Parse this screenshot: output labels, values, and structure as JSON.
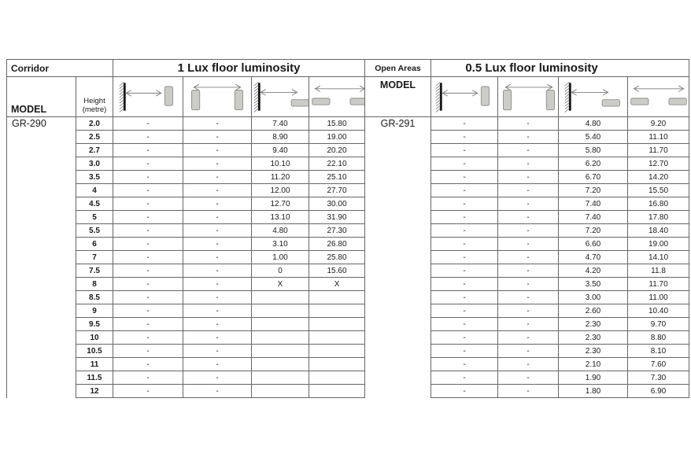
{
  "colors": {
    "line": "#666666",
    "text": "#1a1a1a",
    "luminaire_fill": "#cbcbc7",
    "luminaire_stroke": "#8f8f8b",
    "wall": "#111111",
    "arrow": "#7d7d7d"
  },
  "left_panel": {
    "area_label": "Corridor",
    "title": "1 Lux floor luminosity",
    "model_label": "MODEL",
    "height_label": {
      "line1": "Height",
      "line2": "(metre)"
    },
    "model": "GR-290",
    "column_icons": [
      "wall-to-wall-luminaire-spacing-icon",
      "wall-luminaire-to-wall-luminaire-spacing-icon",
      "wall-to-ceiling-luminaire-spacing-icon",
      "ceiling-luminaire-to-ceiling-luminaire-spacing-icon"
    ],
    "rows": [
      {
        "height": "2.0",
        "values": [
          "-",
          "-",
          "7.40",
          "15.80"
        ]
      },
      {
        "height": "2.5",
        "values": [
          "-",
          "-",
          "8.90",
          "19.00"
        ]
      },
      {
        "height": "2.7",
        "values": [
          "-",
          "-",
          "9.40",
          "20.20"
        ]
      },
      {
        "height": "3.0",
        "values": [
          "-",
          "-",
          "10.10",
          "22.10"
        ]
      },
      {
        "height": "3.5",
        "values": [
          "-",
          "-",
          "11.20",
          "25.10"
        ]
      },
      {
        "height": "4",
        "values": [
          "-",
          "-",
          "12.00",
          "27.70"
        ]
      },
      {
        "height": "4.5",
        "values": [
          "-",
          "-",
          "12.70",
          "30.00"
        ]
      },
      {
        "height": "5",
        "values": [
          "-",
          "-",
          "13.10",
          "31.90"
        ]
      },
      {
        "height": "5.5",
        "values": [
          "-",
          "-",
          "4.80",
          "27.30"
        ]
      },
      {
        "height": "6",
        "values": [
          "-",
          "-",
          "3.10",
          "26.80"
        ]
      },
      {
        "height": "7",
        "values": [
          "-",
          "-",
          "1.00",
          "25.80"
        ]
      },
      {
        "height": "7.5",
        "values": [
          "-",
          "-",
          "0",
          "15.60"
        ]
      },
      {
        "height": "8",
        "values": [
          "-",
          "-",
          "X",
          "X"
        ]
      },
      {
        "height": "8.5",
        "values": [
          "-",
          "-",
          "",
          ""
        ]
      },
      {
        "height": "9",
        "values": [
          "-",
          "-",
          "",
          ""
        ]
      },
      {
        "height": "9.5",
        "values": [
          "-",
          "-",
          "",
          ""
        ]
      },
      {
        "height": "10",
        "values": [
          "-",
          "-",
          "",
          ""
        ]
      },
      {
        "height": "10.5",
        "values": [
          "-",
          "-",
          "",
          ""
        ]
      },
      {
        "height": "11",
        "values": [
          "-",
          "-",
          "",
          ""
        ]
      },
      {
        "height": "11.5",
        "values": [
          "-",
          "-",
          "",
          ""
        ]
      },
      {
        "height": "12",
        "values": [
          "-",
          "-",
          "",
          ""
        ]
      }
    ]
  },
  "right_panel": {
    "area_label": "Open Areas",
    "title": "0.5 Lux floor luminosity",
    "model_label": "MODEL",
    "model": "GR-291",
    "column_icons": [
      "wall-to-wall-luminaire-spacing-icon",
      "wall-luminaire-to-wall-luminaire-spacing-icon",
      "wall-to-ceiling-luminaire-spacing-icon",
      "ceiling-luminaire-to-ceiling-luminaire-spacing-icon"
    ],
    "rows": [
      {
        "values": [
          "-",
          "-",
          "4.80",
          "9.20"
        ]
      },
      {
        "values": [
          "-",
          "-",
          "5.40",
          "11.10"
        ]
      },
      {
        "values": [
          "-",
          "-",
          "5.80",
          "11.70"
        ]
      },
      {
        "values": [
          "-",
          "-",
          "6.20",
          "12.70"
        ]
      },
      {
        "values": [
          "-",
          "-",
          "6.70",
          "14.20"
        ]
      },
      {
        "values": [
          "-",
          "-",
          "7.20",
          "15.50"
        ]
      },
      {
        "values": [
          "-",
          "-",
          "7.40",
          "16.80"
        ]
      },
      {
        "values": [
          "-",
          "-",
          "7.40",
          "17.80"
        ]
      },
      {
        "values": [
          "-",
          "-",
          "7.20",
          "18.40"
        ]
      },
      {
        "values": [
          "-",
          "-",
          "6.60",
          "19.00"
        ]
      },
      {
        "values": [
          "-",
          "-",
          "4.70",
          "14.10"
        ]
      },
      {
        "values": [
          "-",
          "-",
          "4.20",
          "11.8"
        ]
      },
      {
        "values": [
          "-",
          "-",
          "3.50",
          "11.70"
        ]
      },
      {
        "values": [
          "-",
          "-",
          "3.00",
          "11.00"
        ]
      },
      {
        "values": [
          "-",
          "-",
          "2.60",
          "10.40"
        ]
      },
      {
        "values": [
          "-",
          "-",
          "2.30",
          "9.70"
        ]
      },
      {
        "values": [
          "-",
          "-",
          "2.30",
          "8.80"
        ]
      },
      {
        "values": [
          "-",
          "-",
          "2.30",
          "8.10"
        ]
      },
      {
        "values": [
          "-",
          "-",
          "2.10",
          "7.60"
        ]
      },
      {
        "values": [
          "-",
          "-",
          "1.90",
          "7.30"
        ]
      },
      {
        "values": [
          "-",
          "-",
          "1.80",
          "6.90"
        ]
      }
    ]
  }
}
